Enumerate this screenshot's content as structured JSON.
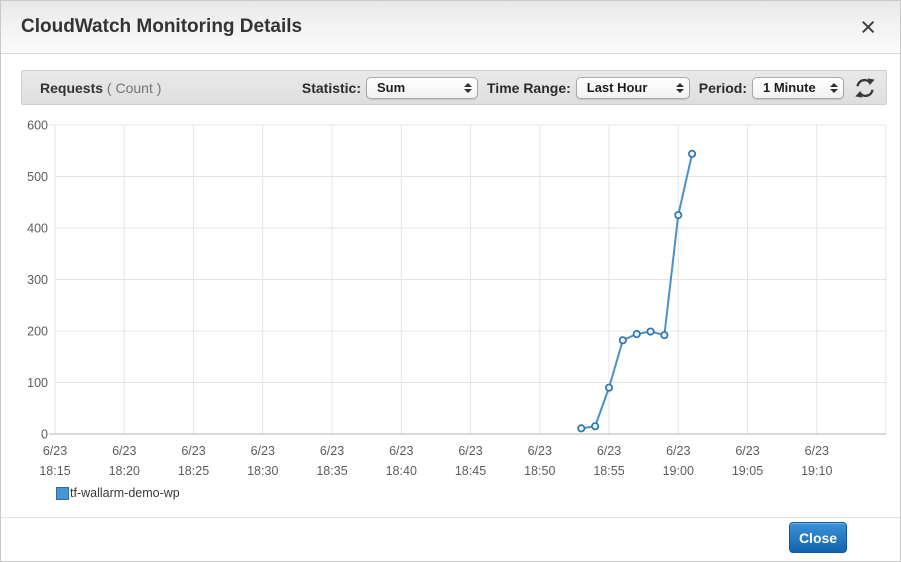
{
  "header": {
    "title": "CloudWatch Monitoring Details",
    "close_icon": "×"
  },
  "toolbar": {
    "metric_label": "Requests",
    "metric_unit": "( Count )",
    "statistic_label": "Statistic:",
    "statistic_value": "Sum",
    "time_range_label": "Time Range:",
    "time_range_value": "Last Hour",
    "period_label": "Period:",
    "period_value": "1 Minute"
  },
  "legend": {
    "series_name": "tf-wallarm-demo-wp",
    "color": "#4596d3",
    "border_color": "#2e6da4"
  },
  "footer": {
    "close_button": "Close"
  },
  "chart_data": {
    "type": "line",
    "title": "Requests (Count)",
    "grid": true,
    "legend_position": "bottom-left",
    "ylim": [
      0,
      600
    ],
    "y_ticks": [
      0,
      100,
      200,
      300,
      400,
      500,
      600
    ],
    "x_axis": {
      "start": "18:15",
      "end": "19:15",
      "tick_interval_minutes": 5
    },
    "x_ticks": [
      {
        "date": "6/23",
        "time": "18:15"
      },
      {
        "date": "6/23",
        "time": "18:20"
      },
      {
        "date": "6/23",
        "time": "18:25"
      },
      {
        "date": "6/23",
        "time": "18:30"
      },
      {
        "date": "6/23",
        "time": "18:35"
      },
      {
        "date": "6/23",
        "time": "18:40"
      },
      {
        "date": "6/23",
        "time": "18:45"
      },
      {
        "date": "6/23",
        "time": "18:50"
      },
      {
        "date": "6/23",
        "time": "18:55"
      },
      {
        "date": "6/23",
        "time": "19:00"
      },
      {
        "date": "6/23",
        "time": "19:05"
      },
      {
        "date": "6/23",
        "time": "19:10"
      }
    ],
    "series": [
      {
        "name": "tf-wallarm-demo-wp",
        "line_color": "#4a90c9",
        "marker_stroke": "#2e75ae",
        "marker_fill": "#eaf3fb",
        "points": [
          {
            "time": "18:53",
            "value": 11
          },
          {
            "time": "18:54",
            "value": 15
          },
          {
            "time": "18:55",
            "value": 90
          },
          {
            "time": "18:56",
            "value": 182
          },
          {
            "time": "18:57",
            "value": 194
          },
          {
            "time": "18:58",
            "value": 199
          },
          {
            "time": "18:59",
            "value": 192
          },
          {
            "time": "19:00",
            "value": 425
          },
          {
            "time": "19:01",
            "value": 544
          }
        ]
      }
    ]
  }
}
